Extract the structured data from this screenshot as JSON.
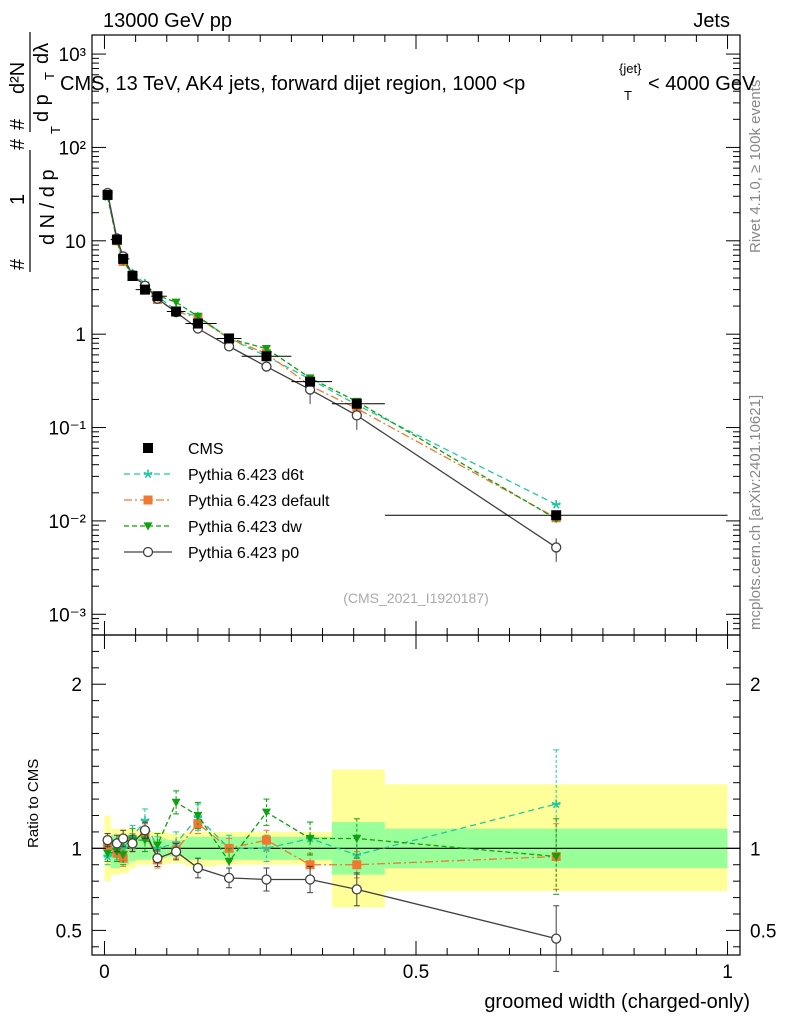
{
  "header": {
    "left": "13000 GeV pp",
    "right": "Jets"
  },
  "main_title": "CMS, 13 TeV, AK4 jets, forward dijet region, 1000 <p",
  "main_title_sub": "T",
  "main_title_sup": "{jet}",
  "main_title_tail": "< 4000 GeV",
  "side_labels": {
    "rivet": "Rivet 4.1.0, ≥ 100k events",
    "mcplots": "mcplots.cern.ch [arXiv:2401.10621]"
  },
  "analysis_id": "(CMS_2021_I1920187)",
  "ylabel_upper": {
    "hash_top": "#",
    "one": "1",
    "hash_bottom": "#",
    "dn": "d N / d p",
    "dn_sub": "T",
    "hash_mid": "#",
    "d2n": "d²N",
    "dpt": "d p",
    "dpt_sub": "T",
    "dlambda": "dλ"
  },
  "ylabel_lower": "Ratio to CMS",
  "xlabel": "groomed width (charged-only)",
  "colors": {
    "cms": "#000000",
    "d6t": "#20c8a0",
    "default": "#f07830",
    "dw": "#10a010",
    "p0": "#404040",
    "band_inner": "#99ff99",
    "band_outer": "#ffff99"
  },
  "chart_data": {
    "type": "line",
    "x_range": [
      -0.02,
      1.02
    ],
    "upper": {
      "y_scale": "log",
      "ylim": [
        0.0006,
        1600
      ],
      "ytick_labels": [
        "10⁻³",
        "10⁻²",
        "10⁻¹",
        "1",
        "10",
        "10²",
        "10³"
      ],
      "ytick_values": [
        0.001,
        0.01,
        0.1,
        1,
        10,
        100,
        1000
      ]
    },
    "lower": {
      "y_scale": "linear",
      "ylim": [
        0.35,
        2.3
      ],
      "ytick_labels": [
        "0.5",
        "1",
        "2"
      ],
      "ytick_values": [
        0.5,
        1,
        2
      ]
    },
    "xtick_labels": [
      "0",
      "0.5",
      "1"
    ],
    "xtick_values": [
      0,
      0.5,
      1
    ],
    "x": [
      0.005,
      0.02,
      0.03,
      0.045,
      0.065,
      0.085,
      0.115,
      0.15,
      0.2,
      0.26,
      0.33,
      0.405,
      0.725
    ],
    "bin_edges": [
      0.0,
      0.01,
      0.025,
      0.04,
      0.05,
      0.075,
      0.1,
      0.13,
      0.18,
      0.22,
      0.3,
      0.365,
      0.45,
      1.0
    ],
    "ratio_band_inner": [
      [
        0.94,
        1.06
      ],
      [
        0.88,
        1.08
      ],
      [
        0.9,
        1.08
      ],
      [
        0.92,
        1.07
      ],
      [
        0.93,
        1.07
      ],
      [
        0.94,
        1.06
      ],
      [
        0.95,
        1.05
      ],
      [
        0.93,
        1.07
      ],
      [
        0.93,
        1.07
      ],
      [
        0.93,
        1.07
      ],
      [
        0.93,
        1.07
      ],
      [
        0.84,
        1.16
      ],
      [
        0.88,
        1.12
      ]
    ],
    "ratio_band_outer": [
      [
        0.8,
        1.2
      ],
      [
        0.84,
        1.12
      ],
      [
        0.85,
        1.12
      ],
      [
        0.88,
        1.12
      ],
      [
        0.9,
        1.11
      ],
      [
        0.9,
        1.1
      ],
      [
        0.91,
        1.09
      ],
      [
        0.89,
        1.1
      ],
      [
        0.9,
        1.1
      ],
      [
        0.9,
        1.1
      ],
      [
        0.9,
        1.1
      ],
      [
        0.64,
        1.48
      ],
      [
        0.74,
        1.39
      ]
    ],
    "series": [
      {
        "name": "CMS",
        "key": "cms",
        "marker": "square",
        "values": [
          31,
          10.3,
          6.4,
          4.2,
          3.0,
          2.55,
          1.75,
          1.3,
          0.9,
          0.58,
          0.31,
          0.18,
          0.0115
        ],
        "ratio": [
          1,
          1,
          1,
          1,
          1,
          1,
          1,
          1,
          1,
          1,
          1,
          1,
          1
        ]
      },
      {
        "name": "Pythia 6.423 d6t",
        "key": "d6t",
        "marker": "star",
        "dash": "6,4",
        "values": [
          29.5,
          10.2,
          6.4,
          4.5,
          3.5,
          2.55,
          1.8,
          1.55,
          0.9,
          0.58,
          0.33,
          0.175,
          0.015
        ],
        "ratio": [
          0.95,
          0.99,
          1.0,
          1.07,
          1.17,
          1.0,
          1.03,
          1.19,
          1.0,
          1.0,
          1.06,
          0.96,
          1.27
        ],
        "ratio_err": [
          0.05,
          0.06,
          0.06,
          0.07,
          0.07,
          0.07,
          0.07,
          0.08,
          0.08,
          0.08,
          0.1,
          0.12,
          0.33
        ]
      },
      {
        "name": "Pythia 6.423 default",
        "key": "default",
        "marker": "square",
        "dash": "8,3,2,3",
        "values": [
          31,
          10.0,
          6.0,
          4.3,
          3.1,
          2.35,
          1.75,
          1.5,
          0.9,
          0.62,
          0.28,
          0.16,
          0.0108
        ],
        "ratio": [
          1.02,
          0.97,
          0.94,
          1.04,
          1.1,
          0.93,
          0.99,
          1.15,
          1.0,
          1.05,
          0.9,
          0.9,
          0.95
        ],
        "ratio_err": [
          0.04,
          0.05,
          0.05,
          0.05,
          0.05,
          0.05,
          0.05,
          0.06,
          0.06,
          0.06,
          0.07,
          0.08,
          0.2
        ]
      },
      {
        "name": "Pythia 6.423 dw",
        "key": "dw",
        "marker": "tri-down",
        "dash": "5,3",
        "values": [
          30,
          10.0,
          6.0,
          4.4,
          3.2,
          2.6,
          2.2,
          1.55,
          0.9,
          0.7,
          0.34,
          0.19,
          0.0105
        ],
        "ratio": [
          0.97,
          0.98,
          0.96,
          1.05,
          1.05,
          1.02,
          1.28,
          1.2,
          0.92,
          1.22,
          1.06,
          1.06,
          0.95
        ],
        "ratio_err": [
          0.05,
          0.06,
          0.06,
          0.07,
          0.07,
          0.07,
          0.07,
          0.08,
          0.08,
          0.08,
          0.1,
          0.12,
          0.23
        ]
      },
      {
        "name": "Pythia 6.423 p0",
        "key": "p0",
        "marker": "circle",
        "dash": "",
        "values": [
          32.5,
          10.6,
          6.8,
          4.3,
          3.3,
          2.4,
          1.72,
          1.15,
          0.74,
          0.45,
          0.255,
          0.135,
          0.0052
        ],
        "ratio": [
          1.05,
          1.03,
          1.06,
          1.03,
          1.11,
          0.94,
          0.98,
          0.88,
          0.82,
          0.81,
          0.81,
          0.75,
          0.45
        ],
        "ratio_err": [
          0.04,
          0.05,
          0.05,
          0.05,
          0.05,
          0.05,
          0.05,
          0.06,
          0.06,
          0.07,
          0.08,
          0.1,
          0.2
        ]
      }
    ]
  }
}
